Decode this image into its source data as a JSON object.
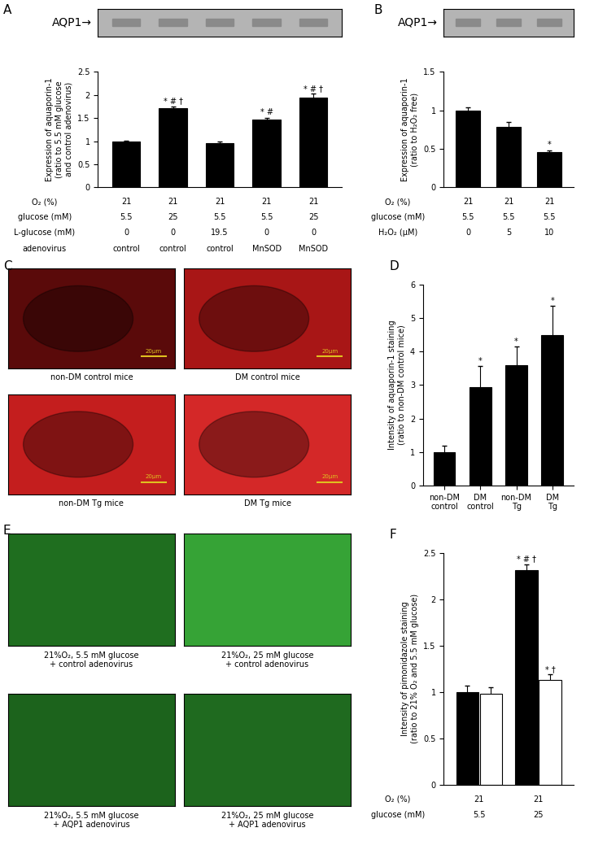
{
  "chart_data": [
    {
      "panel": "A",
      "type": "bar",
      "blot_label": "AQP1→",
      "ylabel": "Expression of aquaporin-1\n(ratio to 5.5 mM glucose\nand control adenovirus)",
      "categories": [
        null,
        null,
        null,
        null,
        null
      ],
      "values": [
        1,
        1.71,
        0.95,
        1.46,
        1.94
      ],
      "errors": [
        0.01,
        0.04,
        0.05,
        0.05,
        0.09
      ],
      "annotations": [
        null,
        "* # †",
        null,
        "* #",
        "* # †"
      ],
      "color": "#000000",
      "ylim": [
        0,
        2.5
      ],
      "yticks": [
        0,
        0.5,
        1,
        1.5,
        2,
        2.5
      ],
      "tick_labels": "y",
      "conditions": [
        {
          "name": "O₂ (%)",
          "values": [
            21,
            21,
            21,
            21,
            21
          ]
        },
        {
          "name": "glucose (mM)",
          "values": [
            5.5,
            25,
            5.5,
            5.5,
            25
          ]
        },
        {
          "name": "L-glucose (mM)",
          "values": [
            0,
            0,
            19.5,
            0,
            0
          ]
        },
        {
          "name": "adenovirus",
          "values": [
            "control",
            "control",
            "control",
            "MnSOD",
            "MnSOD"
          ]
        }
      ]
    },
    {
      "panel": "B",
      "type": "bar",
      "blot_label": "AQP1→",
      "ylabel": "Expression of aquaporin-1\n(ratio to H₂O₂ free)",
      "categories": [
        null,
        null,
        null
      ],
      "values": [
        1,
        0.79,
        0.46
      ],
      "errors": [
        0.04,
        0.06,
        0.02
      ],
      "annotations": [
        null,
        null,
        "*"
      ],
      "color": "#000000",
      "ylim": [
        0,
        1.5
      ],
      "yticks": [
        0,
        0.5,
        1,
        1.5
      ],
      "tick_labels": "y",
      "conditions": [
        {
          "name": "O₂ (%)",
          "values": [
            21,
            21,
            21
          ]
        },
        {
          "name": "glucose (mM)",
          "values": [
            5.5,
            5.5,
            5.5
          ]
        },
        {
          "name": "H₂O₂ (μM)",
          "values": [
            0,
            5,
            10
          ]
        }
      ]
    },
    {
      "panel": "D",
      "type": "bar",
      "ylabel": "Intensity of aquaporin-1 staining\n(ratio to non-DM control mice)",
      "categories": [
        "non-DM\ncontrol",
        "DM\ncontrol",
        "non-DM\nTg",
        "DM\nTg"
      ],
      "values": [
        1,
        2.93,
        3.6,
        4.48
      ],
      "errors": [
        0.18,
        0.63,
        0.55,
        0.88
      ],
      "annotations": [
        null,
        "*",
        "*",
        "*"
      ],
      "color": "#000000",
      "ylim": [
        0,
        6
      ],
      "yticks": [
        0,
        1,
        2,
        3,
        4,
        5,
        6
      ],
      "tick_labels": true
    },
    {
      "panel": "F",
      "type": "bar",
      "ylabel": "Intensity of pimonidazole staining\n(ratio to 21% O₂ and 5.5 mM glucose)",
      "categories": [
        null,
        null
      ],
      "series": [
        {
          "color": "#000000",
          "values": [
            1,
            2.32
          ],
          "errors": [
            0.07,
            0.06
          ],
          "annotations": [
            null,
            "* # †"
          ]
        },
        {
          "color": "#ffffff",
          "values": [
            0.98,
            1.13
          ],
          "errors": [
            0.07,
            0.06
          ],
          "annotations": [
            null,
            "* †"
          ]
        }
      ],
      "ylim": [
        0,
        2.5
      ],
      "yticks": [
        0,
        0.5,
        1,
        1.5,
        2,
        2.5
      ],
      "tick_labels": "y",
      "conditions": [
        {
          "name": "O₂ (%)",
          "values": [
            21,
            21
          ]
        },
        {
          "name": "glucose (mM)",
          "values": [
            5.5,
            25
          ]
        }
      ]
    }
  ],
  "image_panels": [
    {
      "panel": "C",
      "scale_bar": "20μm",
      "images": [
        {
          "caption": "non-DM control mice",
          "color": "#5a0a0a"
        },
        {
          "caption": "DM control mice",
          "color": "#a81616"
        },
        {
          "caption": "non-DM Tg mice",
          "color": "#c41e1e"
        },
        {
          "caption": "DM Tg mice",
          "color": "#d42828"
        }
      ]
    },
    {
      "panel": "E",
      "images": [
        {
          "caption": "21%O₂, 5.5 mM glucose\n+ control adenovirus",
          "color": "#1f6e1f"
        },
        {
          "caption": "21%O₂, 25 mM glucose\n+ control adenovirus",
          "color": "#36a336"
        },
        {
          "caption": "21%O₂, 5.5 mM glucose\n+ AQP1 adenovirus",
          "color": "#1c631c"
        },
        {
          "caption": "21%O₂, 25 mM glucose\n+ AQP1 adenovirus",
          "color": "#1f6a1f"
        }
      ]
    }
  ]
}
